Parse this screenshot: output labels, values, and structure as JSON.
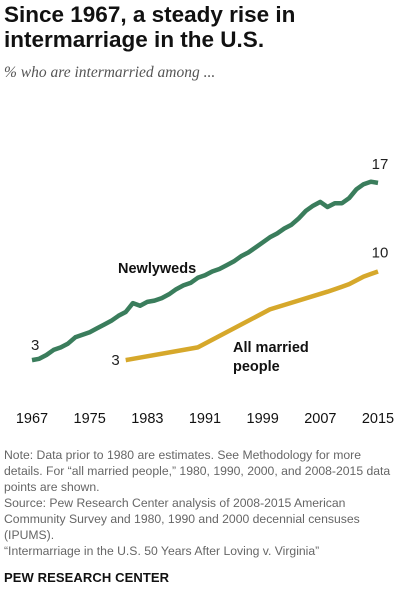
{
  "title": "Since 1967, a steady rise in intermarriage in the U.S.",
  "subtitle": "% who are intermarried among ...",
  "chart_data": {
    "type": "line",
    "xlim": [
      1967,
      2015
    ],
    "ylim": [
      0,
      20
    ],
    "grid": false,
    "x_ticks": [
      "1967",
      "1975",
      "1983",
      "1991",
      "1999",
      "2007",
      "2015"
    ],
    "series": [
      {
        "name": "Newlyweds",
        "color": "#3a7d5c",
        "points": [
          [
            1967,
            3
          ],
          [
            1968,
            3.1
          ],
          [
            1969,
            3.4
          ],
          [
            1970,
            3.8
          ],
          [
            1971,
            4.0
          ],
          [
            1972,
            4.3
          ],
          [
            1973,
            4.8
          ],
          [
            1974,
            5.0
          ],
          [
            1975,
            5.2
          ],
          [
            1976,
            5.5
          ],
          [
            1977,
            5.8
          ],
          [
            1978,
            6.1
          ],
          [
            1979,
            6.5
          ],
          [
            1980,
            6.8
          ],
          [
            1981,
            7.5
          ],
          [
            1982,
            7.3
          ],
          [
            1983,
            7.6
          ],
          [
            1984,
            7.7
          ],
          [
            1985,
            7.9
          ],
          [
            1986,
            8.2
          ],
          [
            1987,
            8.6
          ],
          [
            1988,
            8.9
          ],
          [
            1989,
            9.1
          ],
          [
            1990,
            9.5
          ],
          [
            1991,
            9.7
          ],
          [
            1992,
            10.0
          ],
          [
            1993,
            10.2
          ],
          [
            1994,
            10.5
          ],
          [
            1995,
            10.8
          ],
          [
            1996,
            11.2
          ],
          [
            1997,
            11.5
          ],
          [
            1998,
            11.9
          ],
          [
            1999,
            12.3
          ],
          [
            2000,
            12.7
          ],
          [
            2001,
            13.0
          ],
          [
            2002,
            13.4
          ],
          [
            2003,
            13.7
          ],
          [
            2004,
            14.2
          ],
          [
            2005,
            14.8
          ],
          [
            2006,
            15.2
          ],
          [
            2007,
            15.5
          ],
          [
            2008,
            15.1
          ],
          [
            2009,
            15.4
          ],
          [
            2010,
            15.4
          ],
          [
            2011,
            15.8
          ],
          [
            2012,
            16.5
          ],
          [
            2013,
            16.9
          ],
          [
            2014,
            17.1
          ],
          [
            2015,
            17
          ]
        ],
        "start_label": "3",
        "end_label": "17"
      },
      {
        "name": "All married people",
        "color": "#d6a82b",
        "points": [
          [
            1980,
            3
          ],
          [
            1990,
            4
          ],
          [
            2000,
            7
          ],
          [
            2008,
            8.4
          ],
          [
            2009,
            8.6
          ],
          [
            2010,
            8.8
          ],
          [
            2011,
            9.0
          ],
          [
            2012,
            9.3
          ],
          [
            2013,
            9.6
          ],
          [
            2014,
            9.8
          ],
          [
            2015,
            10
          ]
        ],
        "start_label": "3",
        "end_label": "10"
      }
    ],
    "series_labels": {
      "newlyweds": "Newlyweds",
      "all_married_line1": "All married",
      "all_married_line2": "people"
    }
  },
  "notes": [
    "Note: Data prior to 1980 are estimates. See Methodology for more details. For “all married people,” 1980, 1990, 2000, and 2008-2015 data points are shown.",
    "Source: Pew Research Center analysis of 2008-2015 American Community Survey and 1980, 1990 and 2000 decennial censuses (IPUMS).",
    "“Intermarriage in the U.S. 50 Years After Loving v. Virginia”"
  ],
  "brand": "PEW RESEARCH CENTER"
}
